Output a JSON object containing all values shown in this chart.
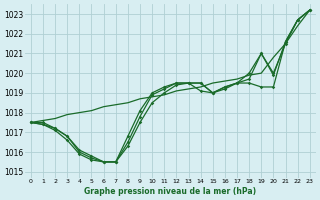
{
  "xlabel": "Graphe pression niveau de la mer (hPa)",
  "xlim": [
    -0.5,
    23.5
  ],
  "ylim": [
    1014.7,
    1023.5
  ],
  "yticks": [
    1015,
    1016,
    1017,
    1018,
    1019,
    1020,
    1021,
    1022,
    1023
  ],
  "xticks": [
    0,
    1,
    2,
    3,
    4,
    5,
    6,
    7,
    8,
    9,
    10,
    11,
    12,
    13,
    14,
    15,
    16,
    17,
    18,
    19,
    20,
    21,
    22,
    23
  ],
  "background_color": "#d8eef2",
  "grid_color": "#b0d0d4",
  "line_color": "#1a6b2a",
  "series_no_marker": [
    [
      1017.5,
      1017.6,
      1017.7,
      1017.9,
      1018.0,
      1018.1,
      1018.3,
      1018.4,
      1018.5,
      1018.7,
      1018.8,
      1018.9,
      1019.1,
      1019.2,
      1019.3,
      1019.5,
      1019.6,
      1019.7,
      1019.9,
      1020.0,
      1020.8,
      1021.5,
      1022.4,
      1023.2
    ]
  ],
  "series_with_marker": [
    [
      1017.5,
      1017.5,
      1017.2,
      1016.8,
      1016.1,
      1015.8,
      1015.5,
      1015.5,
      1016.3,
      1017.5,
      1018.5,
      1019.0,
      1019.4,
      1019.5,
      1019.5,
      1019.0,
      1019.3,
      1019.5,
      1019.5,
      1019.3,
      1019.3,
      1021.6,
      1022.7,
      1023.2
    ],
    [
      1017.5,
      1017.4,
      1017.2,
      1016.8,
      1016.0,
      1015.7,
      1015.5,
      1015.5,
      1016.5,
      1017.8,
      1018.9,
      1019.2,
      1019.5,
      1019.5,
      1019.5,
      1019.0,
      1019.3,
      1019.5,
      1019.7,
      1021.0,
      1020.0,
      1021.5,
      1022.7,
      1023.2
    ],
    [
      1017.5,
      1017.4,
      1017.1,
      1016.6,
      1015.9,
      1015.6,
      1015.5,
      1015.5,
      1016.8,
      1018.1,
      1019.0,
      1019.3,
      1019.5,
      1019.5,
      1019.1,
      1019.0,
      1019.2,
      1019.5,
      1020.0,
      1021.0,
      1019.9,
      1021.6,
      1022.7,
      1023.2
    ]
  ]
}
